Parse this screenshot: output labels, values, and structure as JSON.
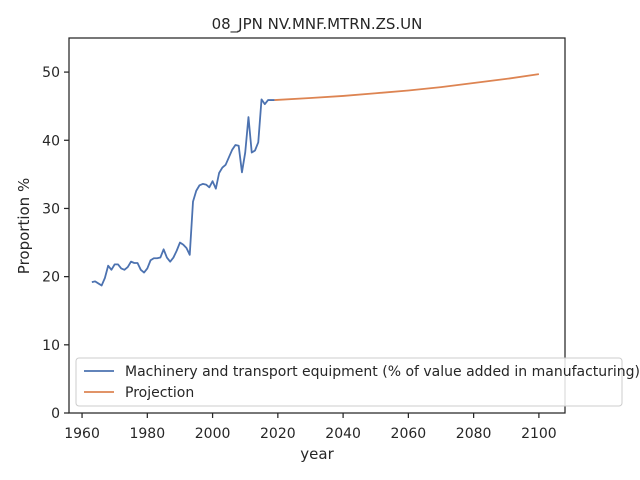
{
  "chart_data": {
    "type": "line",
    "title": "08_JPN NV.MNF.MTRN.ZS.UN",
    "xlabel": "year",
    "ylabel": "Proportion %",
    "xlim": [
      1956,
      2108
    ],
    "ylim": [
      0,
      55
    ],
    "xticks": [
      1960,
      1980,
      2000,
      2020,
      2040,
      2060,
      2080,
      2100
    ],
    "yticks": [
      0,
      10,
      20,
      30,
      40,
      50
    ],
    "grid": false,
    "legend_position": "bottom-right",
    "series": [
      {
        "name": "Machinery and transport equipment (% of value added in manufacturing)",
        "color": "#4c72b0",
        "x": [
          1963,
          1964,
          1965,
          1966,
          1967,
          1968,
          1969,
          1970,
          1971,
          1972,
          1973,
          1974,
          1975,
          1976,
          1977,
          1978,
          1979,
          1980,
          1981,
          1982,
          1983,
          1984,
          1985,
          1986,
          1987,
          1988,
          1989,
          1990,
          1991,
          1992,
          1993,
          1994,
          1995,
          1996,
          1997,
          1998,
          1999,
          2000,
          2001,
          2002,
          2003,
          2004,
          2005,
          2006,
          2007,
          2008,
          2009,
          2010,
          2011,
          2012,
          2013,
          2014,
          2015,
          2016,
          2017,
          2018,
          2019
        ],
        "y": [
          19.2,
          19.3,
          19.0,
          18.7,
          19.8,
          21.6,
          21.0,
          21.8,
          21.8,
          21.2,
          21.0,
          21.4,
          22.2,
          22.0,
          22.0,
          21.0,
          20.6,
          21.2,
          22.4,
          22.7,
          22.7,
          22.8,
          24.0,
          22.8,
          22.2,
          22.8,
          23.8,
          25.0,
          24.7,
          24.2,
          23.2,
          31.0,
          32.6,
          33.4,
          33.6,
          33.5,
          33.1,
          34.0,
          32.9,
          35.2,
          36.0,
          36.4,
          37.5,
          38.6,
          39.3,
          39.2,
          35.3,
          38.2,
          43.4,
          38.2,
          38.5,
          39.7,
          46.0,
          45.3,
          45.9,
          45.9,
          45.9
        ]
      },
      {
        "name": "Projection",
        "color": "#dd8452",
        "x": [
          2019,
          2030,
          2040,
          2050,
          2060,
          2070,
          2080,
          2090,
          2100
        ],
        "y": [
          45.9,
          46.2,
          46.5,
          46.9,
          47.3,
          47.8,
          48.4,
          49.0,
          49.7
        ]
      }
    ]
  }
}
